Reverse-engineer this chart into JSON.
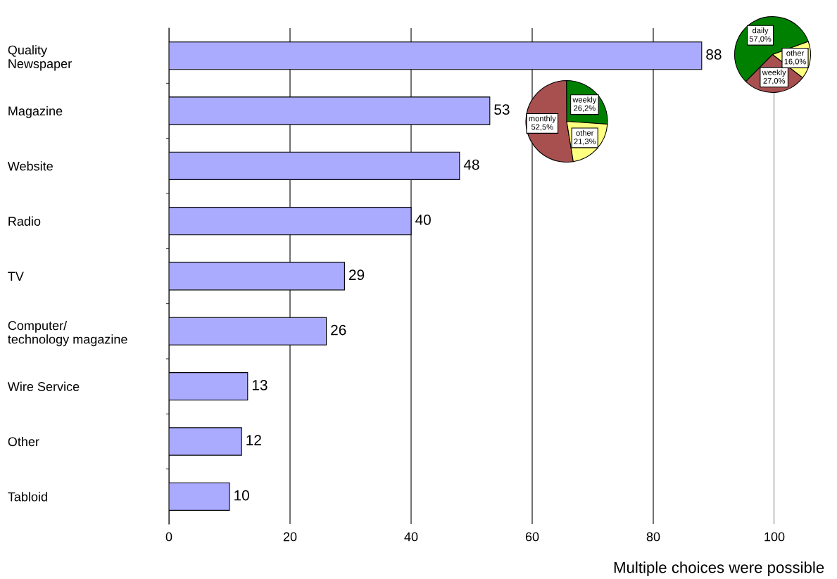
{
  "chart_data": [
    {
      "type": "bar",
      "orientation": "horizontal",
      "categories": [
        "Quality\nNewspaper",
        "Magazine",
        "Website",
        "Radio",
        "TV",
        "Computer/\ntechnology magazine",
        "Wire Service",
        "Other",
        "Tabloid"
      ],
      "values": [
        88,
        53,
        48,
        40,
        29,
        26,
        13,
        12,
        10
      ],
      "color": "#aaaaff",
      "xlim": [
        0,
        100
      ],
      "xticks": [
        0,
        20,
        40,
        60,
        80,
        100
      ],
      "grid": "x",
      "data_labels": true,
      "annotations": [
        "Multiple choices were possible"
      ]
    },
    {
      "type": "pie",
      "categories": [
        "weekly",
        "monthly",
        "other"
      ],
      "values": [
        26.2,
        52.5,
        21.3
      ],
      "value_labels": [
        "26,2%",
        "52,5%",
        "21,3%"
      ],
      "colors": [
        "#008000",
        "#a85050",
        "#ffff80"
      ]
    },
    {
      "type": "pie",
      "categories": [
        "daily",
        "weekly",
        "other"
      ],
      "values": [
        57.0,
        27.0,
        16.0
      ],
      "value_labels": [
        "57,0%",
        "27,0%",
        "16,0%"
      ],
      "colors": [
        "#008000",
        "#a85050",
        "#ffff80"
      ]
    }
  ]
}
